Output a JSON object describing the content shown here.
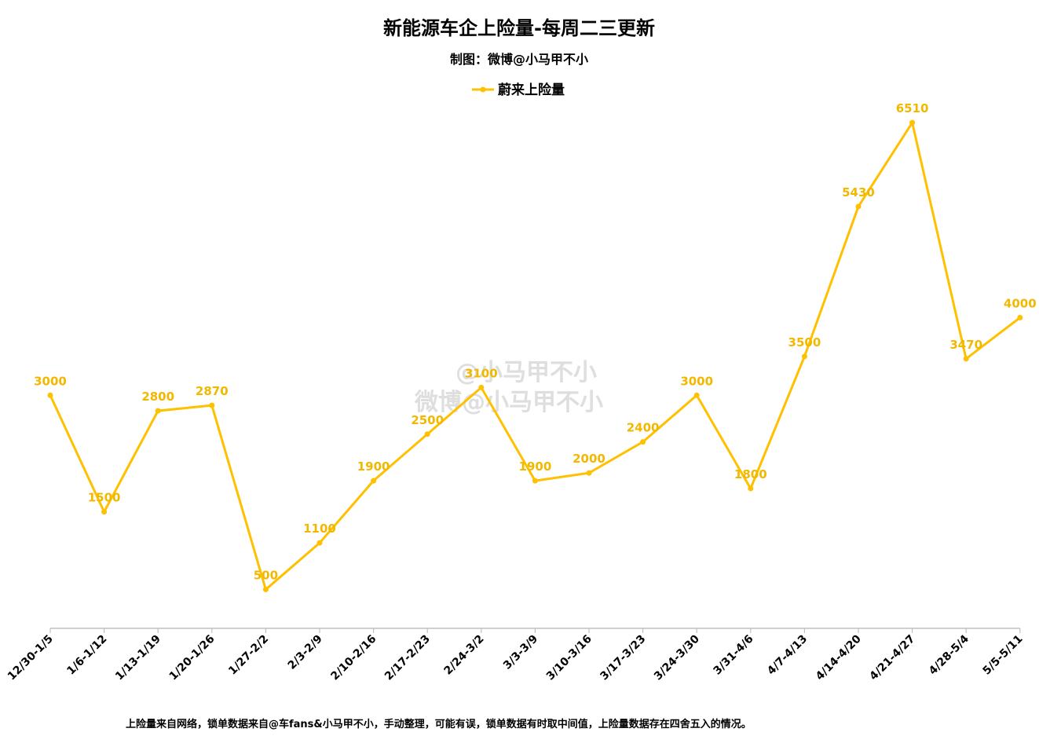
{
  "colors": {
    "series": "#FFC000",
    "label": "#F2B800",
    "axis": "#BFBFBF",
    "watermark": "#D9D9D9"
  },
  "watermark": {
    "line1": "@小马甲不小",
    "line2": "微博@小马甲不小"
  },
  "footnote": "上险量来自网络，锁单数据来自@车fans&小马甲不小，手动整理，可能有误，锁单数据有时取中间值，上险量数据存在四舍五入的情况。",
  "chart_data": {
    "type": "line",
    "title": "新能源车企上险量-每周二三更新",
    "subtitle": "制图：微博@小马甲不小",
    "legend_position": "top-center",
    "grid": false,
    "categories": [
      "12/30-1/5",
      "1/6-1/12",
      "1/13-1/19",
      "1/20-1/26",
      "1/27-2/2",
      "2/3-2/9",
      "2/10-2/16",
      "2/17-2/23",
      "2/24-3/2",
      "3/3-3/9",
      "3/10-3/16",
      "3/17-3/23",
      "3/24-3/30",
      "3/31-4/6",
      "4/7-4/13",
      "4/14-4/20",
      "4/21-4/27",
      "4/28-5/4",
      "5/5-5/11"
    ],
    "series": [
      {
        "name": "蔚来上险量",
        "values": [
          3000,
          1500,
          2800,
          2870,
          500,
          1100,
          1900,
          2500,
          3100,
          1900,
          2000,
          2400,
          3000,
          1800,
          3500,
          5430,
          6510,
          3470,
          4000
        ]
      }
    ],
    "ylim": [
      0,
      6800
    ],
    "xlabel": "",
    "ylabel": ""
  }
}
